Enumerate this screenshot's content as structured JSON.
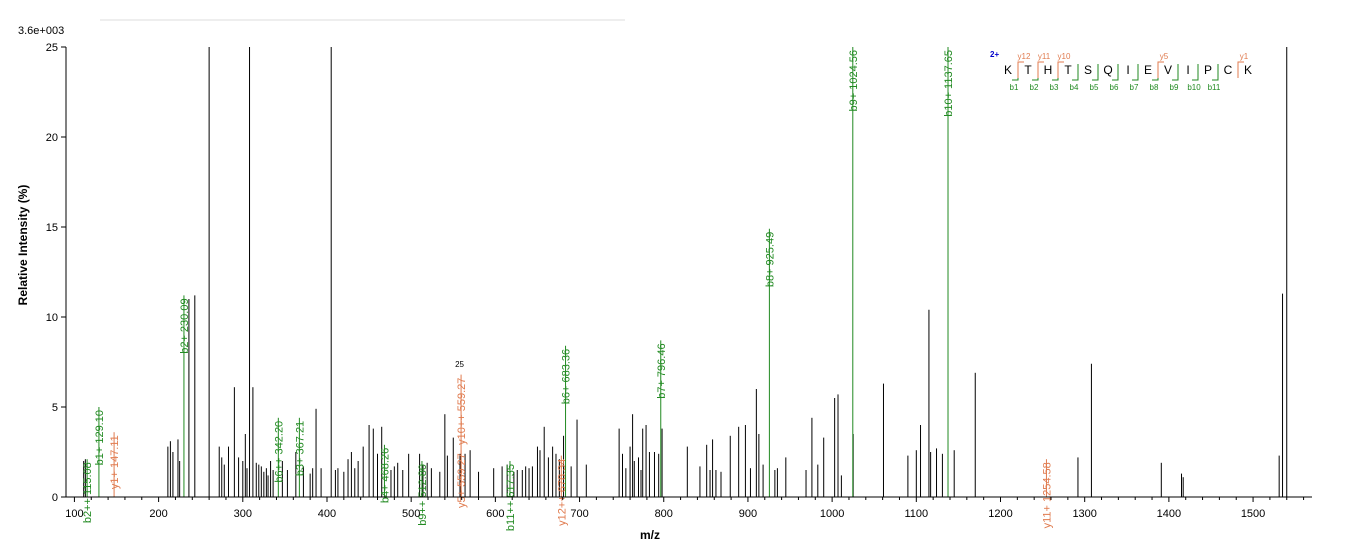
{
  "chart_data": {
    "type": "bar",
    "scale_label": "3.6e+003",
    "xlabel": "m/z",
    "ylabel": "Relative   Intensity (%)",
    "xlim": [
      90,
      1570
    ],
    "ylim": [
      0,
      25
    ],
    "xticks": [
      100,
      200,
      300,
      400,
      500,
      600,
      700,
      800,
      900,
      1000,
      1100,
      1200,
      1300,
      1400,
      1500
    ],
    "yticks": [
      0,
      5,
      10,
      15,
      20,
      25
    ],
    "colors": {
      "unassigned": "#000000",
      "b_ion": "#218a21",
      "y_ion": "#e07b4f",
      "charge": "#0000cc"
    },
    "peaks": [
      [
        111,
        2
      ],
      [
        113,
        2.1
      ],
      [
        211,
        2.8
      ],
      [
        214,
        3.1
      ],
      [
        217,
        2.5
      ],
      [
        223,
        3.2
      ],
      [
        225,
        2
      ],
      [
        236,
        11
      ],
      [
        243,
        11.2
      ],
      [
        260,
        25
      ],
      [
        272,
        2.8
      ],
      [
        275,
        2.2
      ],
      [
        278,
        1.8
      ],
      [
        283,
        2.8
      ],
      [
        290,
        6.1
      ],
      [
        295,
        2.2
      ],
      [
        300,
        2
      ],
      [
        303,
        3.5
      ],
      [
        305,
        1.6
      ],
      [
        308,
        25
      ],
      [
        312,
        6.1
      ],
      [
        316,
        1.9
      ],
      [
        319,
        1.8
      ],
      [
        322,
        1.7
      ],
      [
        325,
        1.4
      ],
      [
        328,
        1.6
      ],
      [
        330,
        1.2
      ],
      [
        333,
        2
      ],
      [
        336,
        1.5
      ],
      [
        347,
        2
      ],
      [
        353,
        1.5
      ],
      [
        363,
        2.5
      ],
      [
        372,
        1.7
      ],
      [
        380,
        1.3
      ],
      [
        383,
        1.6
      ],
      [
        387,
        4.9
      ],
      [
        393,
        1.6
      ],
      [
        405,
        25
      ],
      [
        410,
        1.5
      ],
      [
        413,
        1.6
      ],
      [
        420,
        1.4
      ],
      [
        425,
        2.1
      ],
      [
        429,
        2.5
      ],
      [
        433,
        1.6
      ],
      [
        437,
        2
      ],
      [
        443,
        2.8
      ],
      [
        450,
        4
      ],
      [
        455,
        3.8
      ],
      [
        460,
        2.4
      ],
      [
        465,
        3.9
      ],
      [
        476,
        1.5
      ],
      [
        480,
        1.7
      ],
      [
        484,
        1.9
      ],
      [
        490,
        1.5
      ],
      [
        497,
        2.4
      ],
      [
        510,
        2.4
      ],
      [
        514,
        1.8
      ],
      [
        519,
        1.9
      ],
      [
        524,
        1.6
      ],
      [
        534,
        1.4
      ],
      [
        540,
        4.6
      ],
      [
        543,
        2.3
      ],
      [
        550,
        3.3
      ],
      [
        558,
        2.4
      ],
      [
        564,
        2.4
      ],
      [
        570,
        2.6
      ],
      [
        580,
        1.4
      ],
      [
        598,
        1.6
      ],
      [
        608,
        1.7
      ],
      [
        614,
        1.8
      ],
      [
        622,
        1.4
      ],
      [
        626,
        1.5
      ],
      [
        632,
        1.5
      ],
      [
        636,
        1.7
      ],
      [
        640,
        1.6
      ],
      [
        644,
        1.7
      ],
      [
        650,
        2.8
      ],
      [
        653,
        2.6
      ],
      [
        658,
        3.9
      ],
      [
        663,
        2.2
      ],
      [
        668,
        2.8
      ],
      [
        672,
        2.4
      ],
      [
        676,
        2.1
      ],
      [
        681,
        3.4
      ],
      [
        690,
        1.7
      ],
      [
        697,
        4.3
      ],
      [
        708,
        1.8
      ],
      [
        747,
        3.8
      ],
      [
        751,
        2.4
      ],
      [
        755,
        1.6
      ],
      [
        760,
        2.8
      ],
      [
        763,
        4.6
      ],
      [
        765,
        2
      ],
      [
        770,
        2.2
      ],
      [
        773,
        1.5
      ],
      [
        775,
        3.8
      ],
      [
        779,
        4
      ],
      [
        783,
        2.5
      ],
      [
        789,
        2.5
      ],
      [
        794,
        2.4
      ],
      [
        798,
        3.8
      ],
      [
        828,
        2.8
      ],
      [
        843,
        1.7
      ],
      [
        851,
        2.9
      ],
      [
        855,
        1.5
      ],
      [
        858,
        3.2
      ],
      [
        862,
        1.5
      ],
      [
        868,
        1.4
      ],
      [
        879,
        3.4
      ],
      [
        889,
        3.9
      ],
      [
        897,
        4
      ],
      [
        903,
        1.6
      ],
      [
        910,
        6
      ],
      [
        913,
        3.5
      ],
      [
        918,
        1.8
      ],
      [
        932,
        1.5
      ],
      [
        935,
        1.6
      ],
      [
        945,
        2.2
      ],
      [
        969,
        1.5
      ],
      [
        976,
        4.4
      ],
      [
        983,
        1.8
      ],
      [
        990,
        3.3
      ],
      [
        1003,
        5.5
      ],
      [
        1007,
        5.7
      ],
      [
        1011,
        1.2
      ],
      [
        1025,
        3.5
      ],
      [
        1061,
        6.3
      ],
      [
        1090,
        2.3
      ],
      [
        1100,
        2.6
      ],
      [
        1105,
        4
      ],
      [
        1115,
        10.4
      ],
      [
        1117,
        2.5
      ],
      [
        1124,
        2.7
      ],
      [
        1131,
        2.4
      ],
      [
        1145,
        2.6
      ],
      [
        1170,
        6.9
      ],
      [
        1292,
        2.2
      ],
      [
        1308,
        7.4
      ],
      [
        1391,
        1.9
      ],
      [
        1415,
        1.3
      ],
      [
        1417,
        1.1
      ],
      [
        1531,
        2.3
      ],
      [
        1535,
        11.3
      ],
      [
        1540,
        25
      ]
    ],
    "annotations": [
      {
        "x": 115.08,
        "y": 2.1,
        "label": "b2++ 115.08",
        "ion": "b"
      },
      {
        "x": 129.1,
        "y": 5.0,
        "label": "b1+ 129.10",
        "ion": "b"
      },
      {
        "x": 147.11,
        "y": 3.6,
        "label": "y1+ 147.11",
        "ion": "y"
      },
      {
        "x": 230.09,
        "y": 11.2,
        "label": "b2+ 230.09",
        "ion": "b"
      },
      {
        "x": 342.2,
        "y": 4.4,
        "label": "b6++ 342.20",
        "ion": "b"
      },
      {
        "x": 367.21,
        "y": 4.4,
        "label": "b3+ 367.21",
        "ion": "b"
      },
      {
        "x": 468.26,
        "y": 2.9,
        "label": "b4+ 468.26",
        "ion": "b"
      },
      {
        "x": 512.8,
        "y": 2.0,
        "label": "b9++ 512.80",
        "ion": "b"
      },
      {
        "x": 559.27,
        "y": 2.6,
        "label": "y5+ 559.27",
        "ion": "y"
      },
      {
        "x": 559.27,
        "y": 6.8,
        "label": "y10++ 559.27",
        "ion": "y"
      },
      {
        "x": 617.35,
        "y": 2.0,
        "label": "b11++ 617.35",
        "ion": "b"
      },
      {
        "x": 678.34,
        "y": 2.3,
        "label": "y12++ 678.34",
        "ion": "y"
      },
      {
        "x": 683.36,
        "y": 8.4,
        "label": "b6+ 683.36",
        "ion": "b"
      },
      {
        "x": 796.46,
        "y": 8.7,
        "label": "b7+ 796.46",
        "ion": "b"
      },
      {
        "x": 925.49,
        "y": 14.9,
        "label": "b8+ 925.49",
        "ion": "b"
      },
      {
        "x": 1024.56,
        "y": 25,
        "label": "b9+ 1024.56",
        "ion": "b"
      },
      {
        "x": 1137.65,
        "y": 25,
        "label": "b10+ 1137.65",
        "ion": "b"
      },
      {
        "x": 1254.58,
        "y": 2.1,
        "label": "y11+ 1254.58",
        "ion": "y"
      }
    ],
    "extra_text": [
      {
        "x": 559.27,
        "text": "25"
      }
    ],
    "peptide": {
      "charge": "2+",
      "sequence": [
        "K",
        "T",
        "H",
        "T",
        "S",
        "Q",
        "I",
        "E",
        "V",
        "I",
        "P",
        "C",
        "K"
      ],
      "b_ions": [
        "b1",
        "b2",
        "b3",
        "b4",
        "b5",
        "b6",
        "b7",
        "b8",
        "b9",
        "b10",
        "b11"
      ],
      "b_positions": [
        0,
        1,
        2,
        3,
        4,
        5,
        6,
        7,
        8,
        9,
        10
      ],
      "y_ions": [
        "y12",
        "y11",
        "y10",
        "y5",
        "y1"
      ],
      "y_positions": [
        1,
        2,
        3,
        8,
        12
      ]
    }
  }
}
